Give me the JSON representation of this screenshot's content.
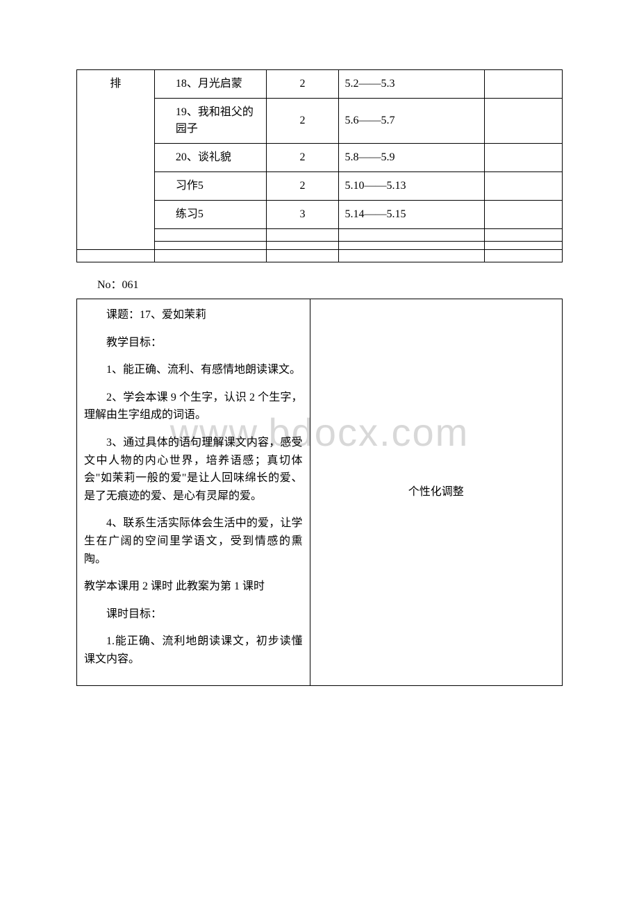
{
  "schedule": {
    "rowspan_label": "排",
    "rows": [
      {
        "title": "18、月光启蒙",
        "hours": "2",
        "dates": "5.2——5.3",
        "note": ""
      },
      {
        "title": "19、我和祖父的园子",
        "hours": "2",
        "dates": "5.6——5.7",
        "note": ""
      },
      {
        "title": "20、谈礼貌",
        "hours": "2",
        "dates": "5.8——5.9",
        "note": ""
      },
      {
        "title": "习作5",
        "hours": "2",
        "dates": "5.10——5.13",
        "note": ""
      },
      {
        "title": "练习5",
        "hours": "3",
        "dates": "5.14——5.15",
        "note": ""
      }
    ]
  },
  "page_no": "No：061",
  "lesson": {
    "title": "课题：17、爱如茉莉",
    "subheading1": "教学目标：",
    "goals": [
      "1、能正确、流利、有感情地朗读课文。",
      "2、学会本课 9 个生字，认识 2 个生字，理解由生字组成的词语。",
      "3、通过具体的语句理解课文内容，感受文中人物的内心世界，培养语感；真切体会\"如茉莉一般的爱\"是让人回味绵长的爱、是了无痕迹的爱、是心有灵犀的爱。",
      "4、联系生活实际体会生活中的爱，让学生在广阔的空间里学语文，受到情感的熏陶。"
    ],
    "hours_note": "教学本课用 2 课时 此教案为第 1 课时",
    "subheading2": "课时目标：",
    "period_goal": "1.能正确、流利地朗读课文，初步读懂课文内容。",
    "right_label": "个性化调整"
  },
  "style": {
    "font_family": "SimSun",
    "text_color": "#000000",
    "border_color": "#000000",
    "watermark_color": "#d8d8d8",
    "background_color": "#ffffff"
  }
}
